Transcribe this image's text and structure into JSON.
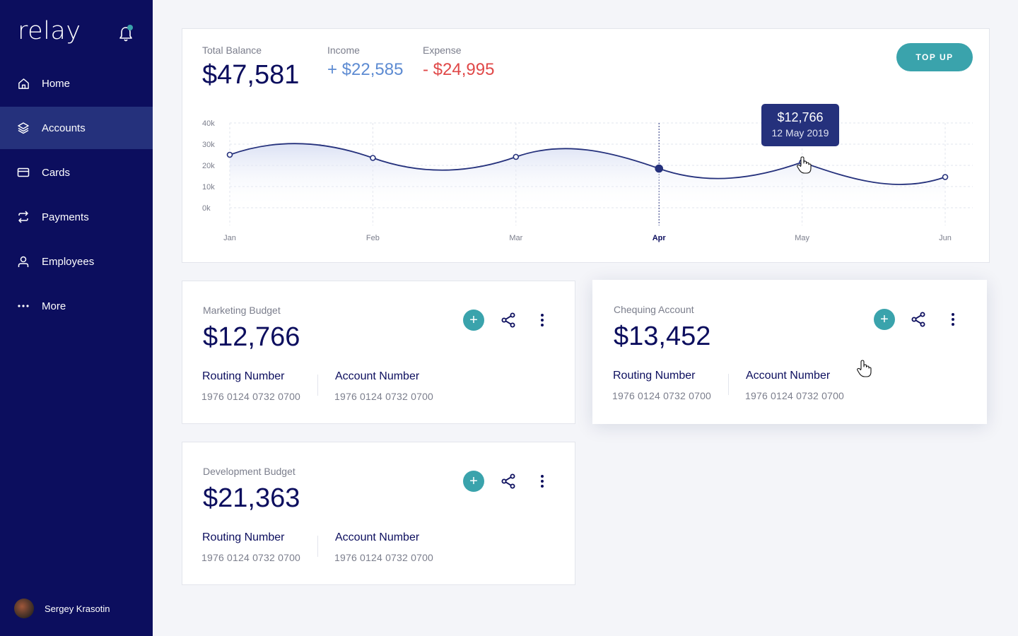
{
  "app": {
    "name": "relay"
  },
  "sidebar": {
    "items": [
      {
        "label": "Home",
        "icon": "home-icon",
        "active": false
      },
      {
        "label": "Accounts",
        "icon": "layers-icon",
        "active": true
      },
      {
        "label": "Cards",
        "icon": "card-icon",
        "active": false
      },
      {
        "label": "Payments",
        "icon": "transfer-icon",
        "active": false
      },
      {
        "label": "Employees",
        "icon": "user-icon",
        "active": false
      },
      {
        "label": "More",
        "icon": "more-horizontal-icon",
        "active": false
      }
    ],
    "user": {
      "name": "Sergey Krasotin"
    }
  },
  "summary": {
    "total_label": "Total Balance",
    "total_value": "$47,581",
    "income_label": "Income",
    "income_value": "+ $22,585",
    "expense_label": "Expense",
    "expense_value": "- $24,995",
    "topup_label": "TOP UP"
  },
  "chart_data": {
    "type": "area",
    "x": [
      "Jan",
      "Feb",
      "Mar",
      "Apr",
      "May",
      "Jun"
    ],
    "series": [
      {
        "values": [
          25000,
          23500,
          24000,
          18500,
          21500,
          14500
        ],
        "color": "#25317c"
      }
    ],
    "y_ticks": [
      "40k",
      "30k",
      "20k",
      "10k",
      "0k"
    ],
    "ylim": [
      0,
      40000
    ],
    "grid": true,
    "highlighted_x": "Apr",
    "tooltip": {
      "value": "$12,766",
      "date": "12 May 2019"
    }
  },
  "accounts": [
    {
      "title": "Marketing Budget",
      "amount": "$12,766",
      "routing_label": "Routing Number",
      "routing_value": "1976 0124 0732 0700",
      "account_label": "Account Number",
      "account_value": "1976 0124 0732 0700"
    },
    {
      "title": "Chequing Account",
      "amount": "$13,452",
      "routing_label": "Routing Number",
      "routing_value": "1976 0124 0732 0700",
      "account_label": "Account Number",
      "account_value": "1976 0124 0732 0700"
    },
    {
      "title": "Development Budget",
      "amount": "$21,363",
      "routing_label": "Routing Number",
      "routing_value": "1976 0124 0732 0700",
      "account_label": "Account Number",
      "account_value": "1976 0124 0732 0700"
    }
  ],
  "colors": {
    "sidebar": "#0c0e5e",
    "active_nav": "#25317c",
    "accent": "#3aa3ac",
    "income": "#5d8bd2",
    "expense": "#e04848"
  }
}
